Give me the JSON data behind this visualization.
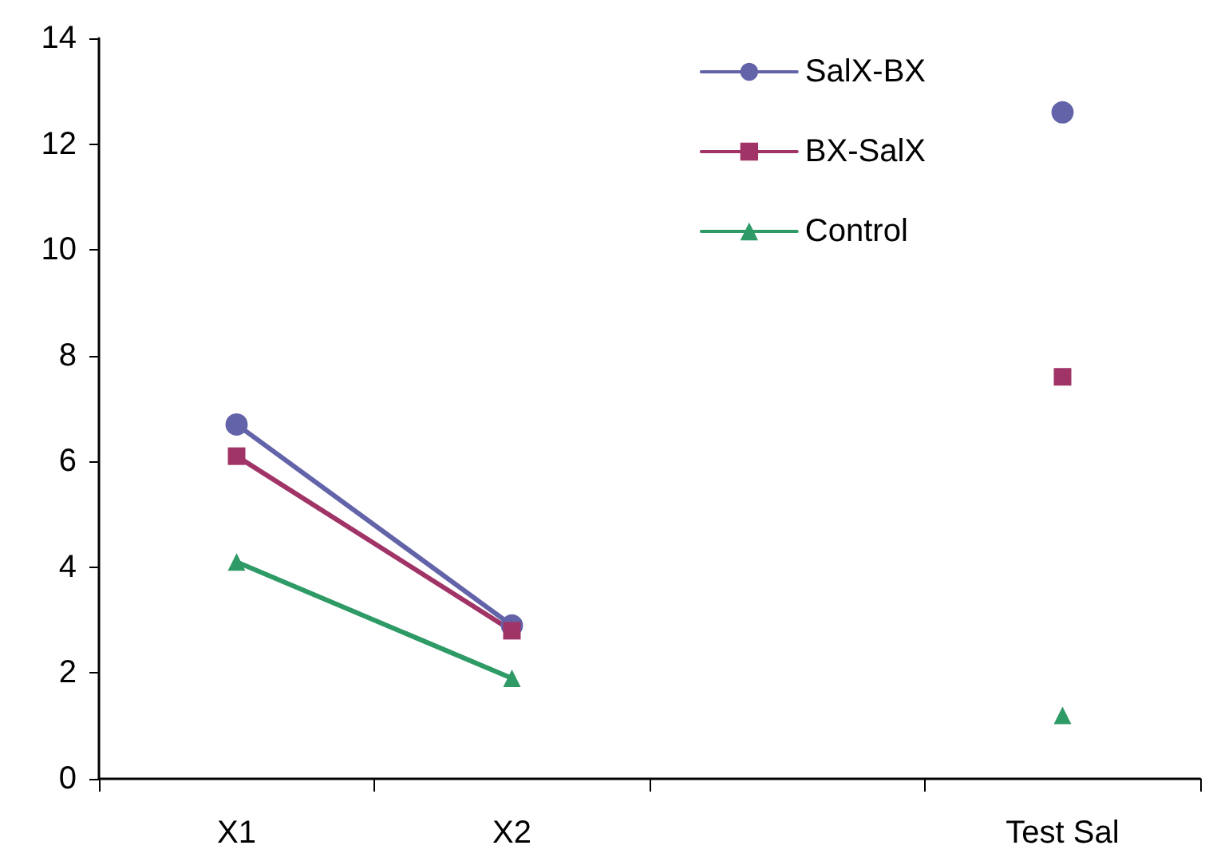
{
  "chart_data": {
    "type": "line",
    "categories": [
      "X1",
      "X2",
      null,
      "Test Sal"
    ],
    "series": [
      {
        "name": "SalX-BX",
        "color": "#6263a8",
        "marker": "circle",
        "values": [
          6.7,
          2.9,
          null,
          12.6
        ]
      },
      {
        "name": "BX-SalX",
        "color": "#a03466",
        "marker": "square",
        "values": [
          6.1,
          2.8,
          null,
          7.6
        ]
      },
      {
        "name": "Control",
        "color": "#2e9a66",
        "marker": "triangle",
        "values": [
          4.1,
          1.9,
          null,
          1.2
        ]
      }
    ],
    "ylim": [
      0,
      14
    ],
    "yticks": [
      0,
      2,
      4,
      6,
      8,
      10,
      12,
      14
    ],
    "grid": false,
    "legend": "top right",
    "line_style": "solid"
  }
}
